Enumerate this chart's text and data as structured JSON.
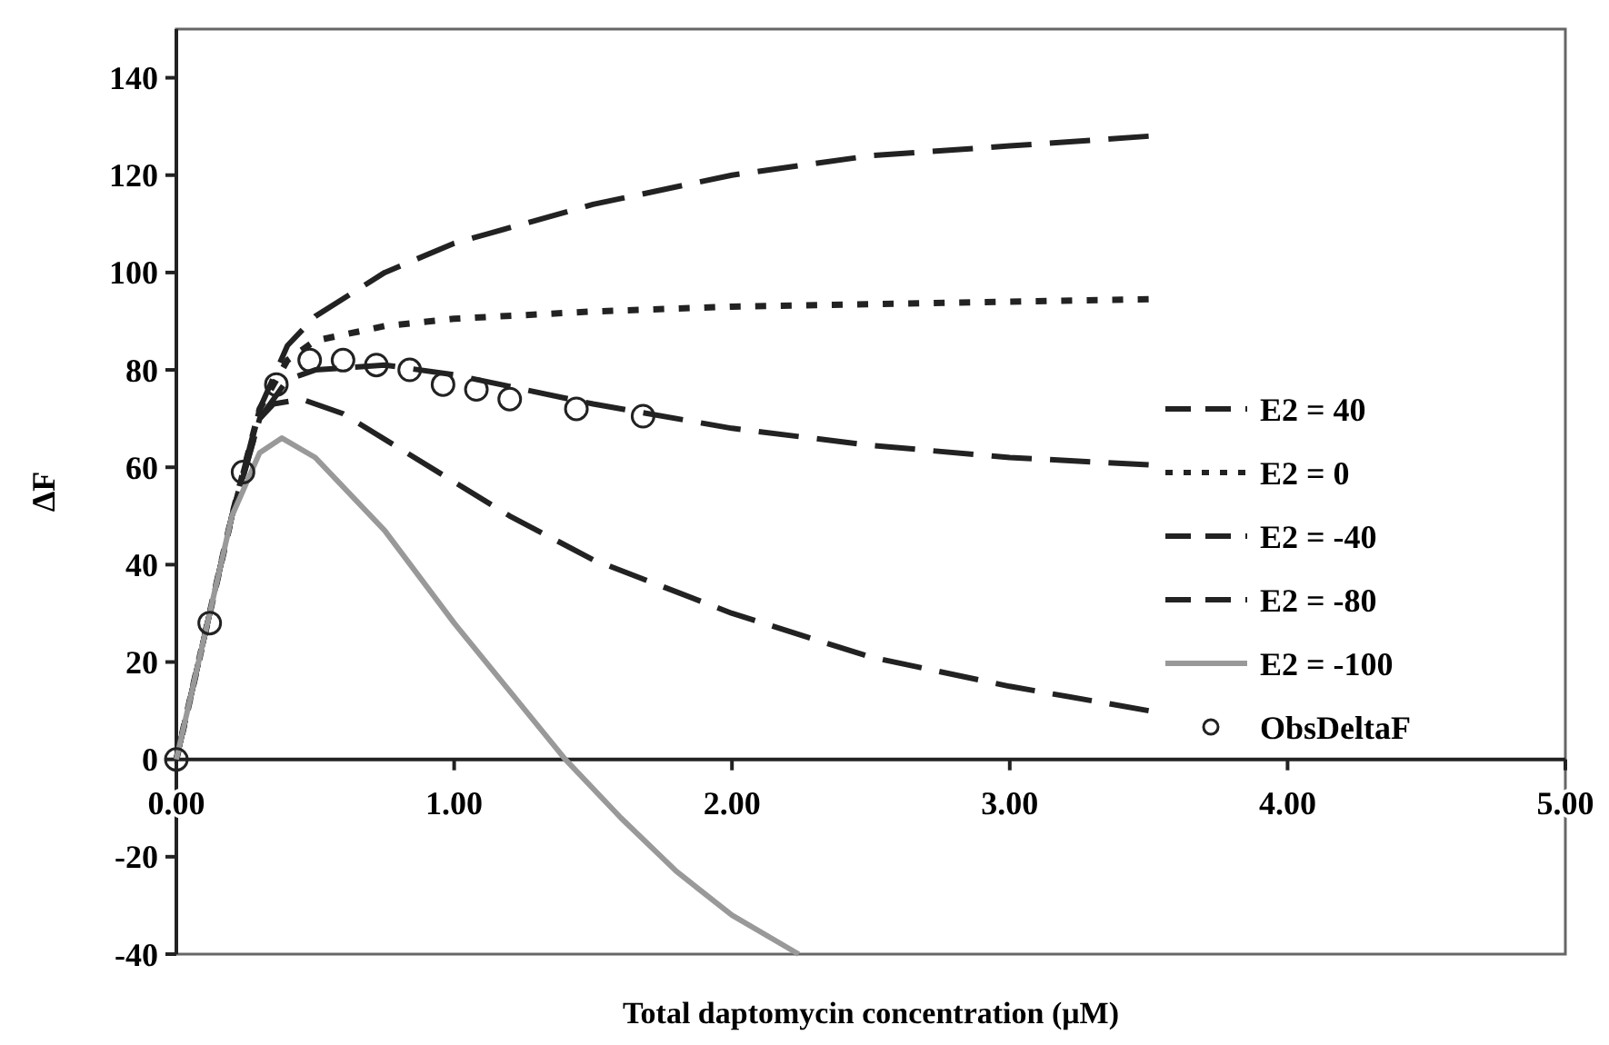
{
  "chart_data": {
    "type": "line",
    "xlabel": "Total daptomycin concentration (μM)",
    "ylabel": "ΔF",
    "xlim": [
      0,
      5
    ],
    "ylim": [
      -40,
      150
    ],
    "xticks": [
      {
        "value": 0,
        "label": "0.00"
      },
      {
        "value": 1,
        "label": "1.00"
      },
      {
        "value": 2,
        "label": "2.00"
      },
      {
        "value": 3,
        "label": "3.00"
      },
      {
        "value": 4,
        "label": "4.00"
      },
      {
        "value": 5,
        "label": "5.00"
      }
    ],
    "yticks": [
      -40,
      -20,
      0,
      20,
      40,
      60,
      80,
      100,
      120,
      140
    ],
    "grid": false,
    "legend": "right",
    "series": [
      {
        "name": "E2 = 40",
        "color": "#222222",
        "line_style": "dashed",
        "marker": "none",
        "x": [
          0,
          0.1,
          0.2,
          0.3,
          0.4,
          0.5,
          0.75,
          1.0,
          1.5,
          2.0,
          2.5,
          3.0,
          3.5
        ],
        "values": [
          0,
          25,
          50,
          72,
          85,
          91,
          100,
          106,
          114,
          120,
          124,
          126,
          128
        ]
      },
      {
        "name": "E2 = 0",
        "color": "#222222",
        "line_style": "dotted",
        "marker": "none",
        "x": [
          0,
          0.1,
          0.2,
          0.3,
          0.4,
          0.5,
          0.75,
          1.0,
          1.5,
          2.0,
          2.5,
          3.0,
          3.5
        ],
        "values": [
          0,
          25,
          50,
          72,
          82,
          86,
          89,
          90.5,
          92,
          93,
          93.5,
          94,
          94.5
        ]
      },
      {
        "name": "E2 = -40",
        "color": "#222222",
        "line_style": "dashed",
        "marker": "none",
        "x": [
          0,
          0.1,
          0.2,
          0.3,
          0.4,
          0.5,
          0.75,
          1.0,
          1.25,
          1.5,
          2.0,
          2.5,
          3.0,
          3.5
        ],
        "values": [
          0,
          25,
          50,
          70,
          78,
          80,
          81,
          79,
          76,
          73,
          68,
          64.5,
          62,
          60.5
        ]
      },
      {
        "name": "E2 = -80",
        "color": "#222222",
        "line_style": "dashed",
        "marker": "none",
        "x": [
          0,
          0.1,
          0.2,
          0.3,
          0.35,
          0.45,
          0.6,
          0.8,
          1.0,
          1.2,
          1.5,
          2.0,
          2.5,
          3.0,
          3.5
        ],
        "values": [
          0,
          25,
          50,
          70,
          73,
          74,
          71,
          64,
          57,
          50,
          41,
          30,
          21,
          15,
          10
        ]
      },
      {
        "name": "E2 = -100",
        "color": "#999999",
        "line_style": "solid",
        "marker": "none",
        "x": [
          0,
          0.1,
          0.2,
          0.3,
          0.38,
          0.5,
          0.75,
          1.0,
          1.2,
          1.4,
          1.6,
          1.8,
          2.0,
          2.24
        ],
        "values": [
          0,
          25,
          50,
          63,
          66,
          62,
          47,
          28,
          14,
          0,
          -12,
          -23,
          -32,
          -40
        ]
      },
      {
        "name": "ObsDeltaF",
        "type": "scatter",
        "color": "#222222",
        "marker": "circle",
        "x": [
          0,
          0.12,
          0.24,
          0.36,
          0.48,
          0.6,
          0.72,
          0.84,
          0.96,
          1.08,
          1.2,
          1.44,
          1.68
        ],
        "values": [
          0,
          28,
          59,
          77,
          82,
          82,
          81,
          80,
          77,
          76,
          74,
          72,
          70.5
        ]
      }
    ]
  }
}
